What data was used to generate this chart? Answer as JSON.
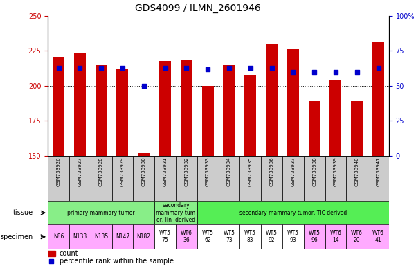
{
  "title": "GDS4099 / ILMN_2601946",
  "samples": [
    "GSM733926",
    "GSM733927",
    "GSM733928",
    "GSM733929",
    "GSM733930",
    "GSM733931",
    "GSM733932",
    "GSM733933",
    "GSM733934",
    "GSM733935",
    "GSM733936",
    "GSM733937",
    "GSM733938",
    "GSM733939",
    "GSM733940",
    "GSM733941"
  ],
  "count_values": [
    221,
    223,
    215,
    212,
    152,
    218,
    219,
    200,
    215,
    208,
    230,
    226,
    189,
    204,
    189,
    231
  ],
  "percentile_values": [
    63,
    63,
    63,
    63,
    50,
    63,
    63,
    62,
    63,
    63,
    63,
    60,
    60,
    60,
    60,
    63
  ],
  "ylim_left": [
    150,
    250
  ],
  "ylim_right": [
    0,
    100
  ],
  "yticks_left": [
    150,
    175,
    200,
    225,
    250
  ],
  "yticks_right": [
    0,
    25,
    50,
    75,
    100
  ],
  "bar_color": "#cc0000",
  "dot_color": "#0000cc",
  "bar_width": 0.55,
  "tissue_regions": [
    {
      "text": "primary mammary tumor",
      "start": 0,
      "end": 5,
      "color": "#88ee88"
    },
    {
      "text": "secondary\nmammary tum\nor, lin- derived",
      "start": 5,
      "end": 7,
      "color": "#88ee88"
    },
    {
      "text": "secondary mammary tumor, TIC derived",
      "start": 7,
      "end": 16,
      "color": "#55dd55"
    }
  ],
  "specimen_labels": [
    {
      "text": "N86",
      "idx": 0,
      "color": "#ffaaff"
    },
    {
      "text": "N133",
      "idx": 1,
      "color": "#ffaaff"
    },
    {
      "text": "N135",
      "idx": 2,
      "color": "#ffaaff"
    },
    {
      "text": "N147",
      "idx": 3,
      "color": "#ffaaff"
    },
    {
      "text": "N182",
      "idx": 4,
      "color": "#ffaaff"
    },
    {
      "text": "WT5\n75",
      "idx": 5,
      "color": "#ffffff"
    },
    {
      "text": "WT6\n36",
      "idx": 6,
      "color": "#ffaaff"
    },
    {
      "text": "WT5\n62",
      "idx": 7,
      "color": "#ffffff"
    },
    {
      "text": "WT5\n73",
      "idx": 8,
      "color": "#ffffff"
    },
    {
      "text": "WT5\n83",
      "idx": 9,
      "color": "#ffffff"
    },
    {
      "text": "WT5\n92",
      "idx": 10,
      "color": "#ffffff"
    },
    {
      "text": "WT5\n93",
      "idx": 11,
      "color": "#ffffff"
    },
    {
      "text": "WT5\n96",
      "idx": 12,
      "color": "#ffaaff"
    },
    {
      "text": "WT6\n14",
      "idx": 13,
      "color": "#ffaaff"
    },
    {
      "text": "WT6\n20",
      "idx": 14,
      "color": "#ffaaff"
    },
    {
      "text": "WT6\n41",
      "idx": 15,
      "color": "#ffaaff"
    }
  ],
  "legend_items": [
    {
      "color": "#cc0000",
      "label": "count"
    },
    {
      "color": "#0000cc",
      "label": "percentile rank within the sample"
    }
  ],
  "xlabel_tissue": "tissue",
  "xlabel_specimen": "specimen",
  "bg_color": "#ffffff",
  "tick_label_color_left": "#cc0000",
  "tick_label_color_right": "#0000cc",
  "xtick_bg_color": "#cccccc",
  "title_fontsize": 10,
  "axis_fontsize": 7,
  "xtick_fontsize": 5,
  "dot_size": 22,
  "tissue_fontsize": 5.5,
  "spec_fontsize": 5.5
}
